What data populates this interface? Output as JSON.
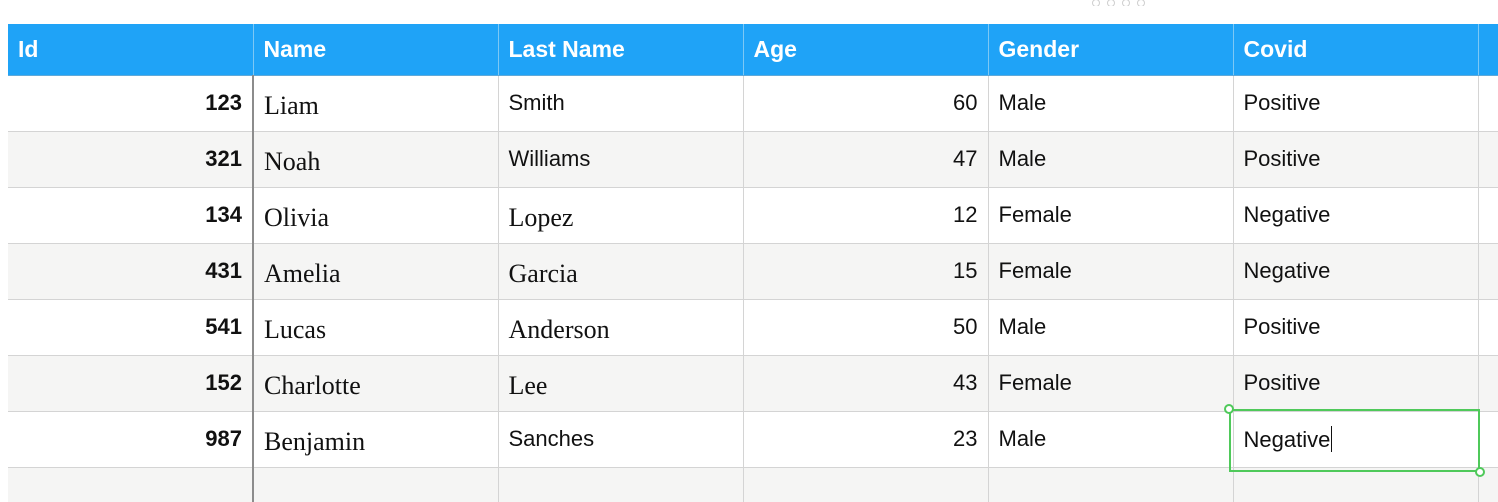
{
  "table": {
    "columns": [
      "Id",
      "Name",
      "Last Name",
      "Age",
      "Gender",
      "Covid"
    ],
    "rows": [
      {
        "id": "123",
        "name": "Liam",
        "last_name": "Smith",
        "age": "60",
        "gender": "Male",
        "covid": "Positive"
      },
      {
        "id": "321",
        "name": "Noah",
        "last_name": "Williams",
        "age": "47",
        "gender": "Male",
        "covid": "Positive"
      },
      {
        "id": "134",
        "name": "Olivia",
        "last_name": "Lopez",
        "age": "12",
        "gender": "Female",
        "covid": "Negative"
      },
      {
        "id": "431",
        "name": "Amelia",
        "last_name": "Garcia",
        "age": "15",
        "gender": "Female",
        "covid": "Negative"
      },
      {
        "id": "541",
        "name": "Lucas",
        "last_name": "Anderson",
        "age": "50",
        "gender": "Male",
        "covid": "Positive"
      },
      {
        "id": "152",
        "name": "Charlotte",
        "last_name": "Lee",
        "age": "43",
        "gender": "Female",
        "covid": "Positive"
      },
      {
        "id": "987",
        "name": "Benjamin",
        "last_name": "Sanches",
        "age": "23",
        "gender": "Male",
        "covid": "Negative"
      }
    ],
    "header_color": "#1fa3f7",
    "selection_color": "#4fc95a",
    "selected_cell": {
      "row": 7,
      "column": "Covid",
      "editing": true
    }
  }
}
